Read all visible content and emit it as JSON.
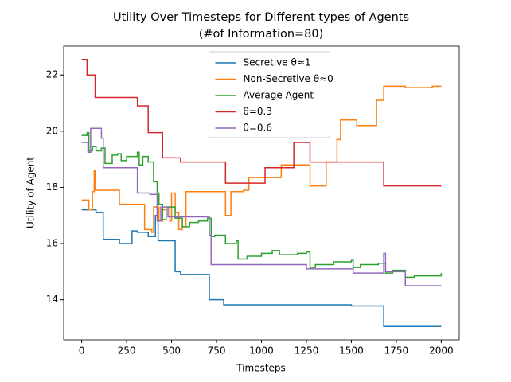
{
  "chart_data": {
    "type": "line",
    "drawstyle": "steps-post",
    "title": "Utility Over Timesteps for Different types of Agents",
    "subtitle": "(#of Information=80)",
    "xlabel": "Timesteps",
    "ylabel": "Utility of Agent",
    "xlim": [
      -100,
      2100
    ],
    "ylim": [
      12.575,
      23.025
    ],
    "xticks": [
      0,
      250,
      500,
      750,
      1000,
      1250,
      1500,
      1750,
      2000
    ],
    "yticks": [
      14,
      16,
      18,
      20,
      22
    ],
    "grid": false,
    "legend": "upper center",
    "series": [
      {
        "name": "Secretive θ≈1",
        "color": "#1f77b4",
        "x": [
          0,
          80,
          120,
          210,
          280,
          310,
          370,
          410,
          425,
          520,
          550,
          710,
          790,
          1500,
          1680,
          2000
        ],
        "values": [
          17.2,
          17.1,
          16.15,
          16.0,
          16.45,
          16.4,
          16.25,
          17.0,
          16.1,
          15.0,
          14.9,
          14.0,
          13.82,
          13.78,
          13.05,
          13.05
        ]
      },
      {
        "name": "Non-Secretive θ≈0",
        "color": "#ff7f0e",
        "x": [
          0,
          40,
          60,
          70,
          75,
          210,
          350,
          390,
          400,
          430,
          450,
          470,
          490,
          500,
          520,
          540,
          560,
          580,
          800,
          830,
          900,
          930,
          1110,
          1270,
          1360,
          1420,
          1440,
          1530,
          1640,
          1680,
          1800,
          1950,
          2000
        ],
        "values": [
          17.55,
          17.2,
          17.85,
          18.6,
          17.9,
          17.4,
          16.5,
          16.4,
          17.3,
          16.8,
          17.2,
          17.3,
          16.8,
          17.8,
          17.1,
          16.5,
          16.6,
          17.85,
          17.0,
          17.85,
          17.9,
          18.35,
          18.8,
          18.05,
          18.9,
          19.7,
          20.4,
          20.2,
          21.1,
          21.6,
          21.55,
          21.6,
          21.6
        ]
      },
      {
        "name": "Average Agent",
        "color": "#2ca02c",
        "x": [
          0,
          30,
          40,
          60,
          80,
          110,
          130,
          170,
          200,
          220,
          250,
          310,
          320,
          340,
          370,
          400,
          420,
          430,
          450,
          470,
          520,
          560,
          600,
          650,
          700,
          720,
          740,
          800,
          860,
          870,
          920,
          1000,
          1060,
          1100,
          1200,
          1250,
          1270,
          1300,
          1400,
          1500,
          1510,
          1550,
          1650,
          1690,
          1730,
          1800,
          1850,
          2000
        ],
        "values": [
          19.85,
          19.95,
          19.3,
          19.45,
          19.3,
          19.4,
          18.85,
          19.15,
          19.2,
          18.95,
          19.1,
          19.25,
          18.8,
          19.1,
          18.9,
          18.2,
          17.8,
          17.4,
          16.85,
          17.3,
          16.9,
          16.6,
          16.75,
          16.8,
          16.9,
          16.25,
          16.3,
          16.0,
          16.1,
          15.45,
          15.55,
          15.65,
          15.75,
          15.6,
          15.65,
          15.7,
          15.15,
          15.25,
          15.35,
          15.4,
          15.15,
          15.25,
          15.3,
          14.95,
          15.05,
          14.8,
          14.85,
          14.95
        ]
      },
      {
        "name": "θ=0.3",
        "color": "#d62728",
        "x": [
          0,
          30,
          75,
          310,
          370,
          450,
          550,
          800,
          1020,
          1180,
          1270,
          1680,
          2000
        ],
        "values": [
          22.55,
          22.0,
          21.2,
          20.9,
          19.95,
          19.05,
          18.9,
          18.15,
          18.7,
          19.6,
          18.9,
          18.05,
          18.05
        ]
      },
      {
        "name": "θ=0.6",
        "color": "#9467bd",
        "x": [
          0,
          35,
          50,
          110,
          120,
          310,
          380,
          420,
          440,
          480,
          710,
          720,
          1250,
          1510,
          1680,
          1690,
          1800,
          2000
        ],
        "values": [
          19.6,
          19.25,
          20.1,
          19.75,
          18.7,
          17.8,
          17.75,
          16.8,
          17.3,
          16.95,
          16.3,
          15.25,
          15.1,
          14.95,
          15.65,
          15.0,
          14.5,
          14.5
        ]
      }
    ]
  }
}
